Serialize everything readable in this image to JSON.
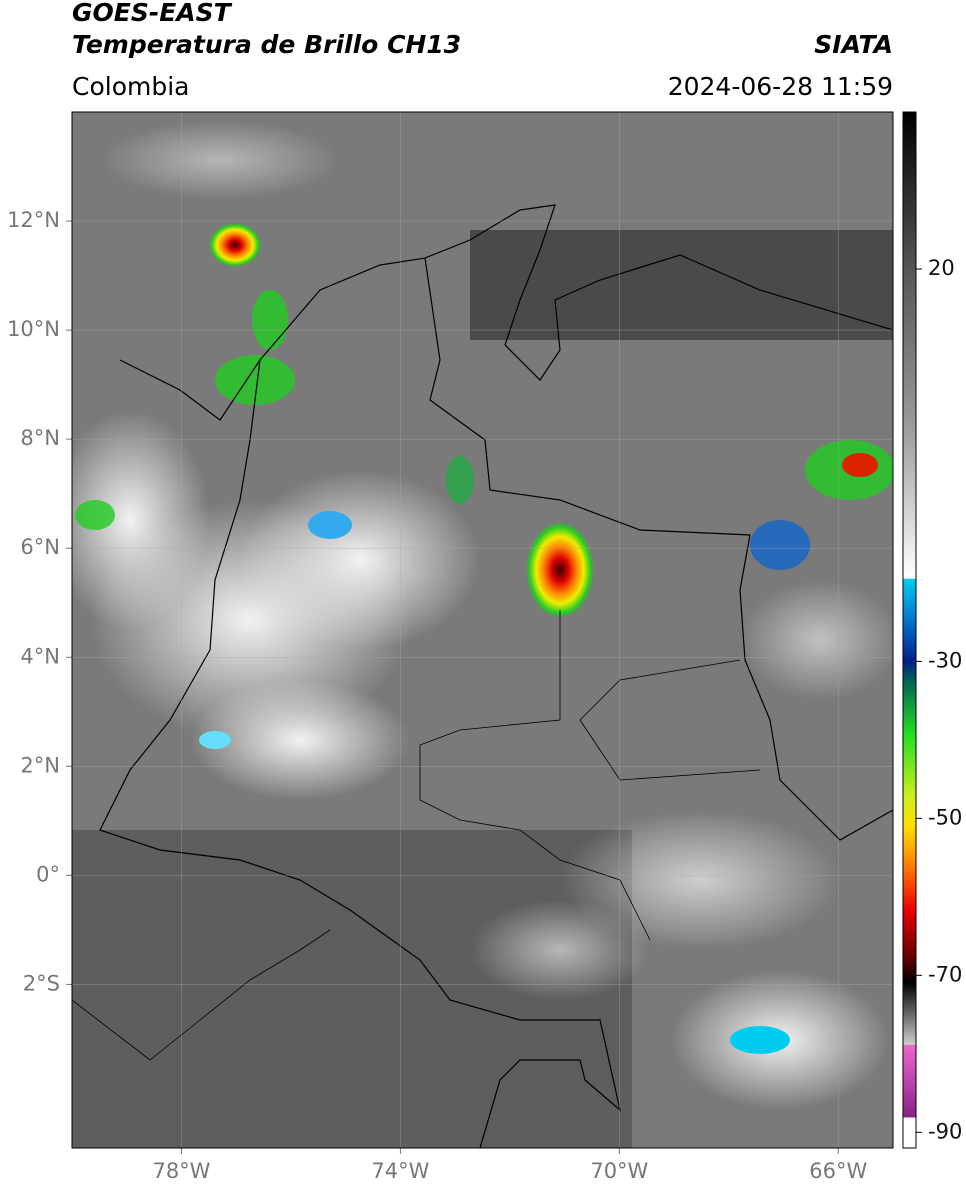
{
  "header": {
    "title": "GOES-EAST",
    "subtitle": "Temperatura de Brillo CH13",
    "source": "SIATA",
    "region": "Colombia",
    "timestamp": "2024-06-28 11:59"
  },
  "map": {
    "lon_lim": [
      -80,
      -65
    ],
    "lat_lim": [
      -5,
      14
    ],
    "lon_ticks": [
      {
        "value": -78,
        "label": "78°W"
      },
      {
        "value": -74,
        "label": "74°W"
      },
      {
        "value": -70,
        "label": "70°W"
      },
      {
        "value": -66,
        "label": "66°W"
      }
    ],
    "lat_ticks": [
      {
        "value": 12,
        "label": "12°N"
      },
      {
        "value": 10,
        "label": "10°N"
      },
      {
        "value": 8,
        "label": "8°N"
      },
      {
        "value": 6,
        "label": "6°N"
      },
      {
        "value": 4,
        "label": "4°N"
      },
      {
        "value": 2,
        "label": "2°N"
      },
      {
        "value": 0,
        "label": "0°"
      },
      {
        "value": -2,
        "label": "2°S"
      }
    ]
  },
  "colorbar": {
    "lim": [
      -92,
      40
    ],
    "ticks": [
      20,
      -30,
      -50,
      -70,
      -90
    ]
  }
}
